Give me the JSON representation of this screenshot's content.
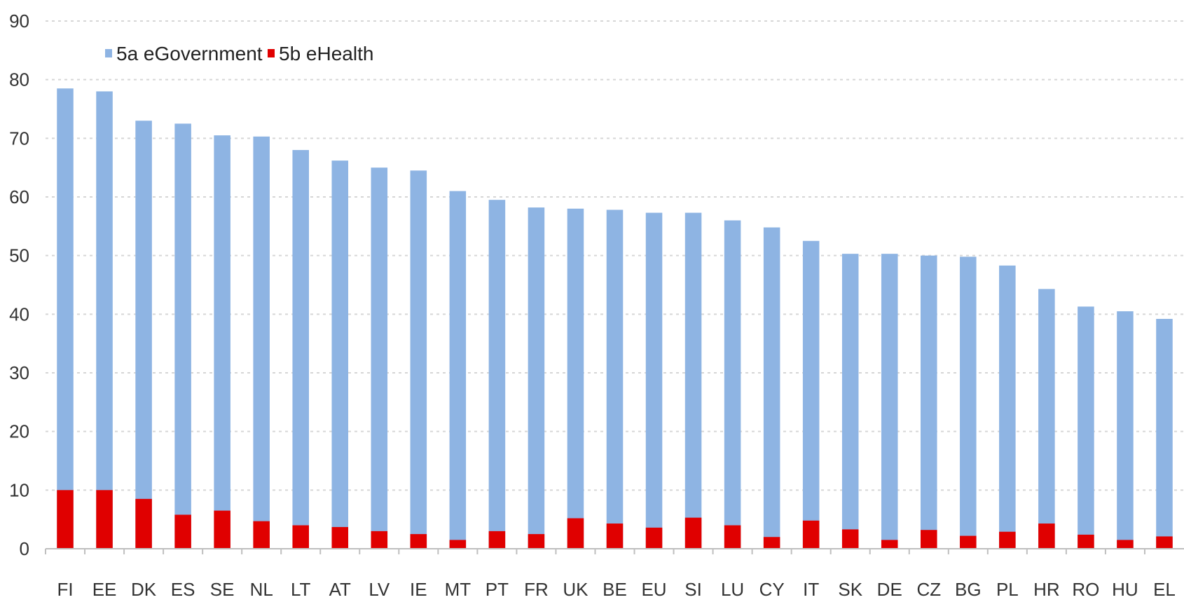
{
  "chart_data": {
    "type": "bar",
    "stacking": "overlapping",
    "categories": [
      "FI",
      "EE",
      "DK",
      "ES",
      "SE",
      "NL",
      "LT",
      "AT",
      "LV",
      "IE",
      "MT",
      "PT",
      "FR",
      "UK",
      "BE",
      "EU",
      "SI",
      "LU",
      "CY",
      "IT",
      "SK",
      "DE",
      "CZ",
      "BG",
      "PL",
      "HR",
      "RO",
      "HU",
      "EL"
    ],
    "series": [
      {
        "name": "5a eGovernment",
        "color": "#8EB4E3",
        "values": [
          78.5,
          78,
          73,
          72.5,
          70.5,
          70.3,
          68,
          66.2,
          65,
          64.5,
          61,
          59.5,
          58.2,
          58,
          57.8,
          57.3,
          57.3,
          56,
          54.8,
          52.5,
          50.3,
          50.3,
          50,
          49.8,
          48.3,
          44.3,
          41.3,
          40.5,
          39.2
        ]
      },
      {
        "name": "5b eHealth",
        "color": "#E00000",
        "values": [
          10,
          10,
          8.5,
          5.8,
          6.5,
          4.7,
          4,
          3.7,
          3,
          2.5,
          1.5,
          3,
          2.5,
          5.2,
          4.3,
          3.6,
          5.3,
          4,
          2,
          4.8,
          3.3,
          1.5,
          3.2,
          2.2,
          2.9,
          4.3,
          2.4,
          1.5,
          2.1
        ]
      }
    ],
    "ylim": [
      0,
      90
    ],
    "yticks": [
      "0",
      "10",
      "20",
      "30",
      "40",
      "50",
      "60",
      "70",
      "80",
      "90"
    ],
    "grid": true,
    "legend_position": "top-left"
  }
}
